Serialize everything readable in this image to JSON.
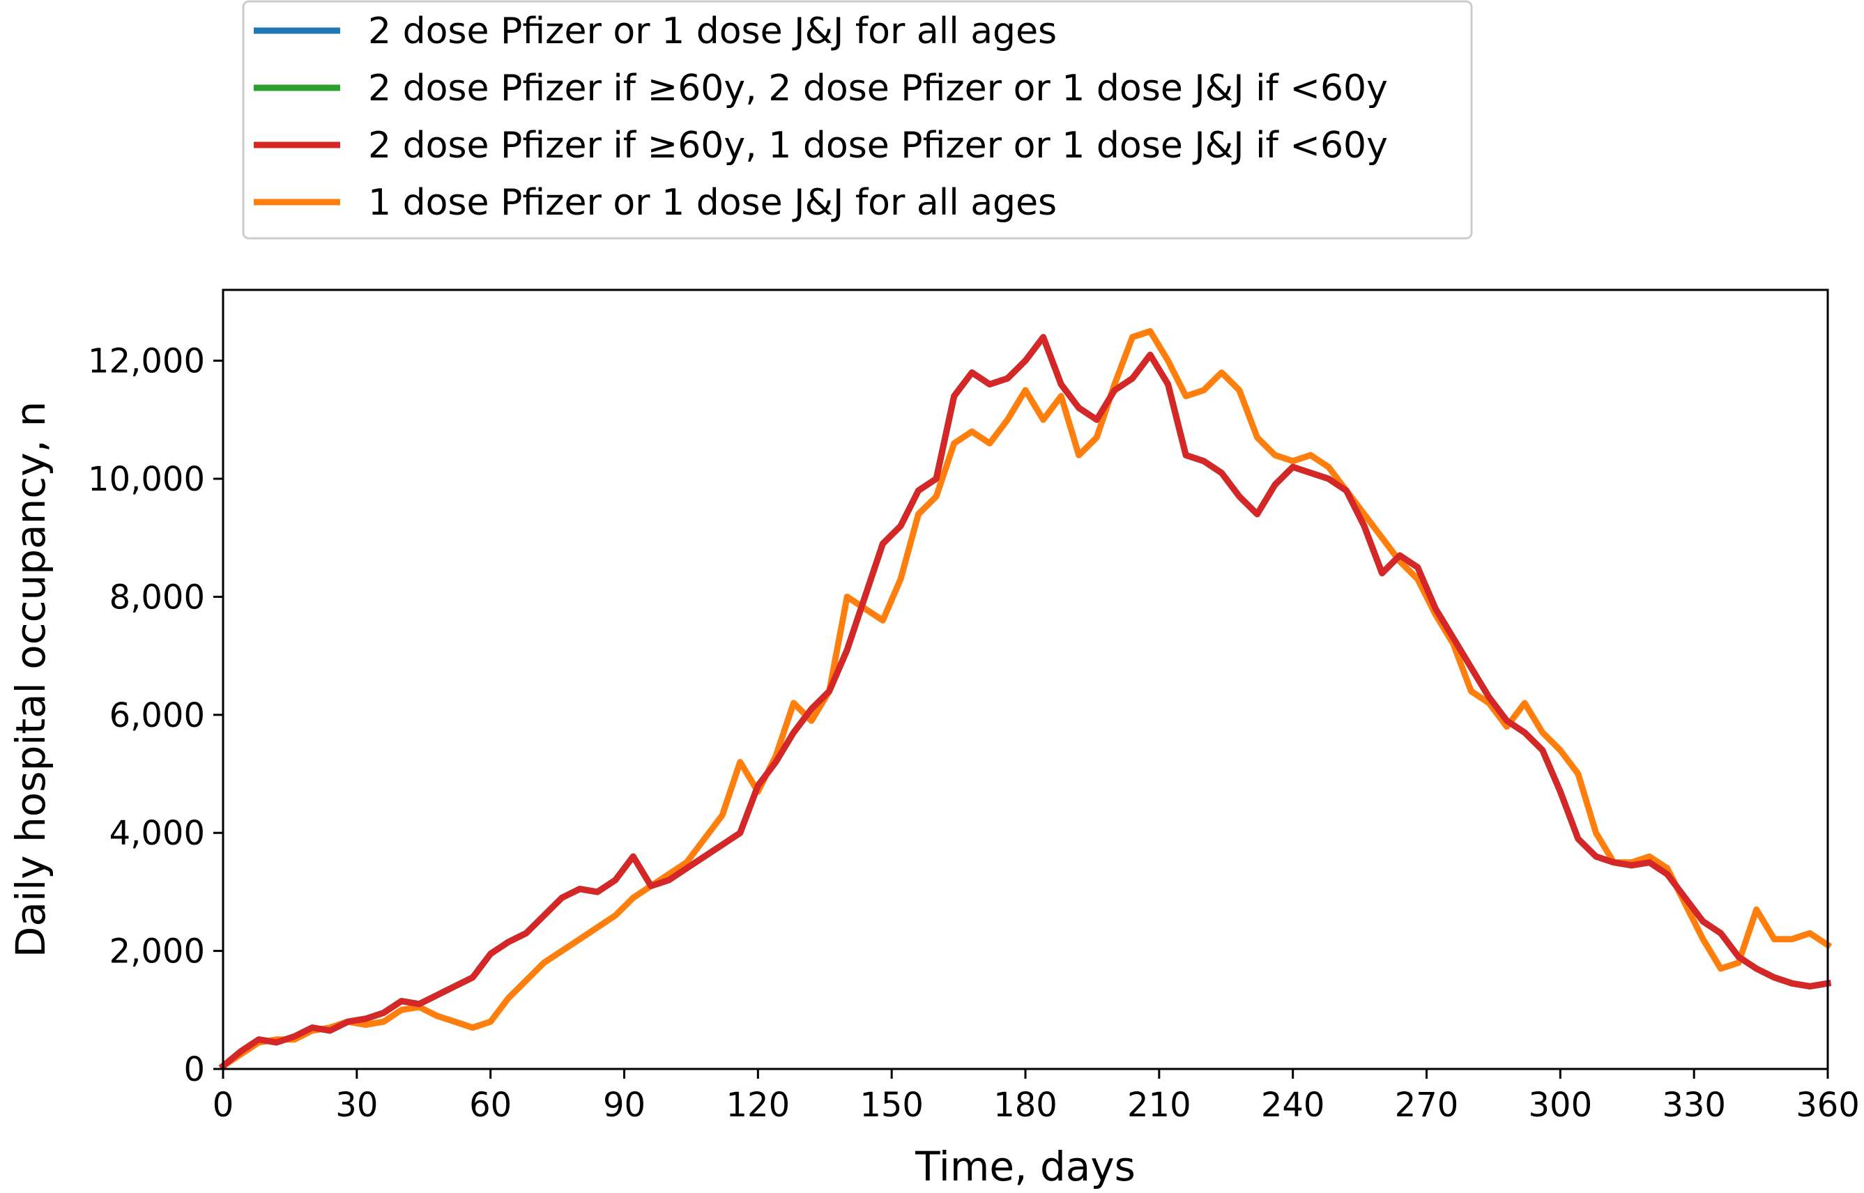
{
  "chart_data": {
    "type": "line",
    "xlabel": "Time, days",
    "ylabel": "Daily hospital occupancy, n",
    "xlim": [
      0,
      360
    ],
    "ylim": [
      0,
      13200
    ],
    "xticks": [
      0,
      30,
      60,
      90,
      120,
      150,
      180,
      210,
      240,
      270,
      300,
      330,
      360
    ],
    "xtick_labels": [
      "0",
      "30",
      "60",
      "90",
      "120",
      "150",
      "180",
      "210",
      "240",
      "270",
      "300",
      "330",
      "360"
    ],
    "yticks": [
      0,
      2000,
      4000,
      6000,
      8000,
      10000,
      12000
    ],
    "ytick_labels": [
      "0",
      "2,000",
      "4,000",
      "6,000",
      "8,000",
      "10,000",
      "12,000"
    ],
    "grid": false,
    "legend_placement": "above",
    "series": [
      {
        "name": "2 dose Pfizer or 1 dose J&J for all ages",
        "color": "#1f77b4",
        "x": [
          0,
          4,
          8,
          12,
          16,
          20,
          24,
          28,
          32,
          36,
          40,
          44,
          48,
          52,
          56,
          60,
          64,
          68,
          72,
          76,
          80,
          84,
          88,
          92,
          96,
          100,
          104,
          108,
          112,
          116,
          120,
          124,
          128,
          132,
          136,
          140,
          144,
          148,
          152,
          156,
          160,
          164,
          168,
          172,
          176,
          180,
          184,
          188,
          192,
          196,
          200,
          204,
          208,
          212,
          216,
          220,
          224,
          228,
          232,
          236,
          240,
          244,
          248,
          252,
          256,
          260,
          264,
          268,
          272,
          276,
          280,
          284,
          288,
          292,
          296,
          300,
          304,
          308,
          312,
          316,
          320,
          324,
          328,
          332,
          336,
          340,
          344,
          348,
          352,
          356,
          360
        ],
        "y": [
          50,
          300,
          500,
          450,
          550,
          700,
          650,
          800,
          850,
          950,
          1150,
          1100,
          1250,
          1400,
          1550,
          1950,
          2150,
          2300,
          2600,
          2900,
          3050,
          3000,
          3200,
          3600,
          3100,
          3200,
          3400,
          3600,
          3800,
          4000,
          4800,
          5200,
          5700,
          6100,
          6400,
          7100,
          8000,
          8900,
          9200,
          9800,
          10000,
          11400,
          11800,
          11600,
          11700,
          12000,
          12400,
          11600,
          11200,
          11000,
          11500,
          11700,
          12100,
          11600,
          10400,
          10300,
          10100,
          9700,
          9400,
          9900,
          10200,
          10100,
          10000,
          9800,
          9200,
          8400,
          8700,
          8500,
          7800,
          7300,
          6800,
          6300,
          5900,
          5700,
          5400,
          4700,
          3900,
          3600,
          3500,
          3450,
          3500,
          3300,
          2900,
          2500,
          2300,
          1900,
          1700,
          1550,
          1450,
          1400,
          1450
        ]
      },
      {
        "name": "2 dose Pfizer if ≥60y, 2 dose Pfizer or 1 dose J&J if <60y",
        "color": "#2ca02c",
        "x": [
          0,
          4,
          8,
          12,
          16,
          20,
          24,
          28,
          32,
          36,
          40,
          44,
          48,
          52,
          56,
          60,
          64,
          68,
          72,
          76,
          80,
          84,
          88,
          92,
          96,
          100,
          104,
          108,
          112,
          116,
          120,
          124,
          128,
          132,
          136,
          140,
          144,
          148,
          152,
          156,
          160,
          164,
          168,
          172,
          176,
          180,
          184,
          188,
          192,
          196,
          200,
          204,
          208,
          212,
          216,
          220,
          224,
          228,
          232,
          236,
          240,
          244,
          248,
          252,
          256,
          260,
          264,
          268,
          272,
          276,
          280,
          284,
          288,
          292,
          296,
          300,
          304,
          308,
          312,
          316,
          320,
          324,
          328,
          332,
          336,
          340,
          344,
          348,
          352,
          356,
          360
        ],
        "y": [
          50,
          300,
          500,
          450,
          550,
          700,
          650,
          800,
          850,
          950,
          1150,
          1100,
          1250,
          1400,
          1550,
          1950,
          2150,
          2300,
          2600,
          2900,
          3050,
          3000,
          3200,
          3600,
          3100,
          3200,
          3400,
          3600,
          3800,
          4000,
          4800,
          5200,
          5700,
          6100,
          6400,
          7100,
          8000,
          8900,
          9200,
          9800,
          10000,
          11400,
          11800,
          11600,
          11700,
          12000,
          12400,
          11600,
          11200,
          11000,
          11500,
          11700,
          12100,
          11600,
          10400,
          10300,
          10100,
          9700,
          9400,
          9900,
          10200,
          10100,
          10000,
          9800,
          9200,
          8400,
          8700,
          8500,
          7800,
          7300,
          6800,
          6300,
          5900,
          5700,
          5400,
          4700,
          3900,
          3600,
          3500,
          3450,
          3500,
          3300,
          2900,
          2500,
          2300,
          1900,
          1700,
          1550,
          1450,
          1400,
          1450
        ]
      },
      {
        "name": "2 dose Pfizer if ≥60y, 1 dose Pfizer or 1 dose J&J if <60y",
        "color": "#d62728",
        "x": [
          0,
          4,
          8,
          12,
          16,
          20,
          24,
          28,
          32,
          36,
          40,
          44,
          48,
          52,
          56,
          60,
          64,
          68,
          72,
          76,
          80,
          84,
          88,
          92,
          96,
          100,
          104,
          108,
          112,
          116,
          120,
          124,
          128,
          132,
          136,
          140,
          144,
          148,
          152,
          156,
          160,
          164,
          168,
          172,
          176,
          180,
          184,
          188,
          192,
          196,
          200,
          204,
          208,
          212,
          216,
          220,
          224,
          228,
          232,
          236,
          240,
          244,
          248,
          252,
          256,
          260,
          264,
          268,
          272,
          276,
          280,
          284,
          288,
          292,
          296,
          300,
          304,
          308,
          312,
          316,
          320,
          324,
          328,
          332,
          336,
          340,
          344,
          348,
          352,
          356,
          360
        ],
        "y": [
          50,
          300,
          500,
          450,
          550,
          700,
          650,
          800,
          850,
          950,
          1150,
          1100,
          1250,
          1400,
          1550,
          1950,
          2150,
          2300,
          2600,
          2900,
          3050,
          3000,
          3200,
          3600,
          3100,
          3200,
          3400,
          3600,
          3800,
          4000,
          4800,
          5200,
          5700,
          6100,
          6400,
          7100,
          8000,
          8900,
          9200,
          9800,
          10000,
          11400,
          11800,
          11600,
          11700,
          12000,
          12400,
          11600,
          11200,
          11000,
          11500,
          11700,
          12100,
          11600,
          10400,
          10300,
          10100,
          9700,
          9400,
          9900,
          10200,
          10100,
          10000,
          9800,
          9200,
          8400,
          8700,
          8500,
          7800,
          7300,
          6800,
          6300,
          5900,
          5700,
          5400,
          4700,
          3900,
          3600,
          3500,
          3450,
          3500,
          3300,
          2900,
          2500,
          2300,
          1900,
          1700,
          1550,
          1450,
          1400,
          1450
        ]
      },
      {
        "name": "1 dose Pfizer or 1 dose J&J for all ages",
        "color": "#ff7f0e",
        "x": [
          0,
          4,
          8,
          12,
          16,
          20,
          24,
          28,
          32,
          36,
          40,
          44,
          48,
          52,
          56,
          60,
          64,
          68,
          72,
          76,
          80,
          84,
          88,
          92,
          96,
          100,
          104,
          108,
          112,
          116,
          120,
          124,
          128,
          132,
          136,
          140,
          144,
          148,
          152,
          156,
          160,
          164,
          168,
          172,
          176,
          180,
          184,
          188,
          192,
          196,
          200,
          204,
          208,
          212,
          216,
          220,
          224,
          228,
          232,
          236,
          240,
          244,
          248,
          252,
          256,
          260,
          264,
          268,
          272,
          276,
          280,
          284,
          288,
          292,
          296,
          300,
          304,
          308,
          312,
          316,
          320,
          324,
          328,
          332,
          336,
          340,
          344,
          348,
          352,
          356,
          360
        ],
        "y": [
          50,
          250,
          450,
          500,
          500,
          650,
          700,
          800,
          750,
          800,
          1000,
          1050,
          900,
          800,
          700,
          800,
          1200,
          1500,
          1800,
          2000,
          2200,
          2400,
          2600,
          2900,
          3100,
          3300,
          3500,
          3900,
          4300,
          5200,
          4700,
          5300,
          6200,
          5900,
          6400,
          8000,
          7800,
          7600,
          8300,
          9400,
          9700,
          10600,
          10800,
          10600,
          11000,
          11500,
          11000,
          11400,
          10400,
          10700,
          11600,
          12400,
          12500,
          12000,
          11400,
          11500,
          11800,
          11500,
          10700,
          10400,
          10300,
          10400,
          10200,
          9800,
          9400,
          9000,
          8600,
          8300,
          7700,
          7200,
          6400,
          6200,
          5800,
          6200,
          5700,
          5400,
          5000,
          4000,
          3500,
          3500,
          3600,
          3400,
          2800,
          2200,
          1700,
          1800,
          2700,
          2200,
          2200,
          2300,
          2100
        ]
      }
    ]
  }
}
